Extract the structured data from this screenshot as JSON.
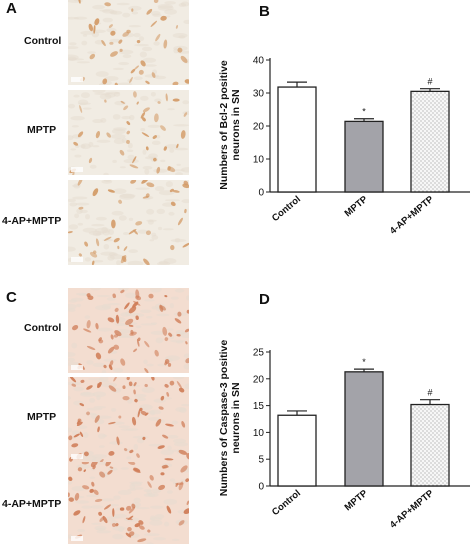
{
  "panels": {
    "A": {
      "letter": "A",
      "stain": "bcl2",
      "rows": [
        "Control",
        "MPTP",
        "4-AP+MPTP"
      ]
    },
    "B": {
      "letter": "B"
    },
    "C": {
      "letter": "C",
      "stain": "caspase3",
      "rows": [
        "Control",
        "MPTP",
        "4-AP+MPTP"
      ]
    },
    "D": {
      "letter": "D"
    }
  },
  "colors": {
    "background": "#ffffff",
    "tissue_bcl2": "#f1ece3",
    "tissue_caspase3": "#f3ddd0",
    "cell_bcl2": "#d39a66",
    "cell_caspase3": "#cf7c56",
    "bar_control": "#ffffff",
    "bar_mptp": "#a3a3a9",
    "bar_4ap": "#f3f3f3",
    "axis": "#222222"
  },
  "chart_data": [
    {
      "type": "bar",
      "panel": "B",
      "categories": [
        "Control",
        "MPTP",
        "4-AP+MPTP"
      ],
      "values": [
        31.8,
        21.4,
        30.5
      ],
      "errors": [
        1.5,
        0.8,
        0.8
      ],
      "annotations": [
        "",
        "*",
        "#"
      ],
      "ylabel": [
        "Numbers of Bcl-2 positive",
        "neurons in SN"
      ],
      "ylim": [
        0,
        40
      ],
      "yticks": [
        0,
        10,
        20,
        30,
        40
      ],
      "bar_fills": [
        "white",
        "gray",
        "dotted"
      ],
      "grid": false
    },
    {
      "type": "bar",
      "panel": "D",
      "categories": [
        "Control",
        "MPTP",
        "4-AP+MPTP"
      ],
      "values": [
        13.2,
        21.3,
        15.2
      ],
      "errors": [
        0.8,
        0.5,
        0.9
      ],
      "annotations": [
        "",
        "*",
        "#"
      ],
      "ylabel": [
        "Numbers of Caspase-3 positive",
        "neurons in SN"
      ],
      "ylim": [
        0,
        25
      ],
      "yticks": [
        0,
        5,
        10,
        15,
        20,
        25
      ],
      "bar_fills": [
        "white",
        "gray",
        "dotted"
      ],
      "grid": false
    }
  ]
}
